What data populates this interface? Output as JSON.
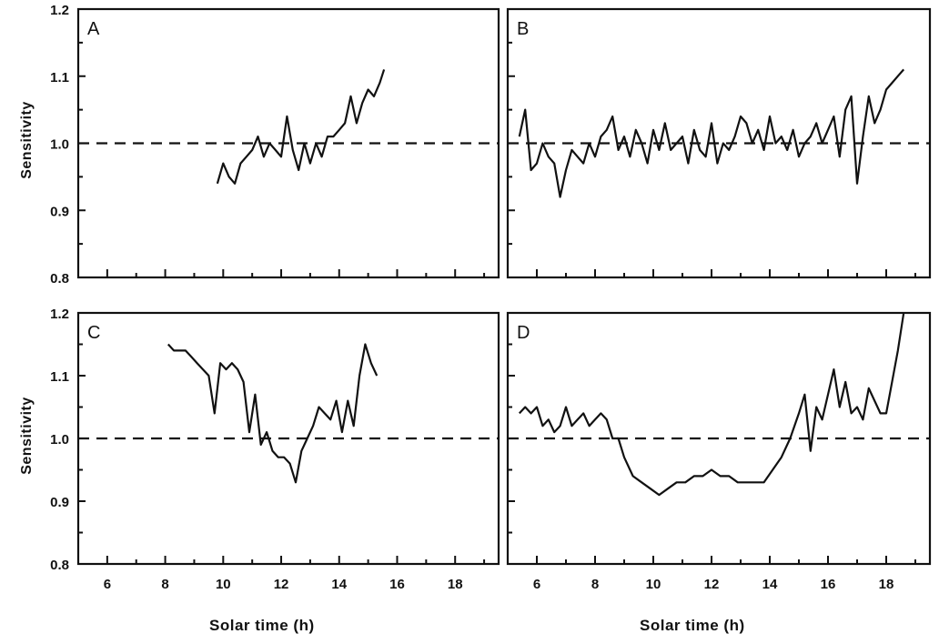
{
  "figure": {
    "ylabel": "Sensitivity",
    "xlabel": "Solar time (h)"
  },
  "chart_data": [
    {
      "type": "line",
      "panel": "A",
      "xlabel": "",
      "ylabel": "Sensitivity",
      "xlim": [
        5,
        19.5
      ],
      "ylim": [
        0.8,
        1.2
      ],
      "x_ticks": [],
      "y_ticks": [
        "0.8",
        "0.9",
        "1.0",
        "1.1",
        "1.2"
      ],
      "reference_line": 1.0,
      "series": [
        {
          "x": [
            9.8,
            10.0,
            10.2,
            10.4,
            10.6,
            10.8,
            11.0,
            11.2,
            11.4,
            11.6,
            11.8,
            12.0,
            12.2,
            12.4,
            12.6,
            12.8,
            13.0,
            13.2,
            13.4,
            13.6,
            13.8,
            14.0,
            14.2,
            14.4,
            14.6,
            14.8,
            15.0,
            15.2,
            15.4,
            15.55
          ],
          "y": [
            0.94,
            0.97,
            0.95,
            0.94,
            0.97,
            0.98,
            0.99,
            1.01,
            0.98,
            1.0,
            0.99,
            0.98,
            1.04,
            0.99,
            0.96,
            1.0,
            0.97,
            1.0,
            0.98,
            1.01,
            1.01,
            1.02,
            1.03,
            1.07,
            1.03,
            1.06,
            1.08,
            1.07,
            1.09,
            1.11
          ]
        }
      ]
    },
    {
      "type": "line",
      "panel": "B",
      "xlabel": "",
      "ylabel": "",
      "xlim": [
        5,
        19.5
      ],
      "ylim": [
        0.8,
        1.2
      ],
      "x_ticks": [],
      "y_ticks": [],
      "reference_line": 1.0,
      "series": [
        {
          "x": [
            5.4,
            5.6,
            5.8,
            6.0,
            6.2,
            6.4,
            6.6,
            6.8,
            7.0,
            7.2,
            7.4,
            7.6,
            7.8,
            8.0,
            8.2,
            8.4,
            8.6,
            8.8,
            9.0,
            9.2,
            9.4,
            9.6,
            9.8,
            10.0,
            10.2,
            10.4,
            10.6,
            10.8,
            11.0,
            11.2,
            11.4,
            11.6,
            11.8,
            12.0,
            12.2,
            12.4,
            12.6,
            12.8,
            13.0,
            13.2,
            13.4,
            13.6,
            13.8,
            14.0,
            14.2,
            14.4,
            14.6,
            14.8,
            15.0,
            15.2,
            15.4,
            15.6,
            15.8,
            16.0,
            16.2,
            16.4,
            16.6,
            16.8,
            17.0,
            17.2,
            17.4,
            17.6,
            17.8,
            18.0,
            18.2,
            18.4,
            18.6
          ],
          "y": [
            1.01,
            1.05,
            0.96,
            0.97,
            1.0,
            0.98,
            0.97,
            0.92,
            0.96,
            0.99,
            0.98,
            0.97,
            1.0,
            0.98,
            1.01,
            1.02,
            1.04,
            0.99,
            1.01,
            0.98,
            1.02,
            1.0,
            0.97,
            1.02,
            0.99,
            1.03,
            0.99,
            1.0,
            1.01,
            0.97,
            1.02,
            0.99,
            0.98,
            1.03,
            0.97,
            1.0,
            0.99,
            1.01,
            1.04,
            1.03,
            1.0,
            1.02,
            0.99,
            1.04,
            1.0,
            1.01,
            0.99,
            1.02,
            0.98,
            1.0,
            1.01,
            1.03,
            1.0,
            1.02,
            1.04,
            0.98,
            1.05,
            1.07,
            0.94,
            1.01,
            1.07,
            1.03,
            1.05,
            1.08,
            1.09,
            1.1,
            1.11
          ]
        }
      ]
    },
    {
      "type": "line",
      "panel": "C",
      "xlabel": "Solar time (h)",
      "ylabel": "Sensitivity",
      "xlim": [
        5,
        19.5
      ],
      "ylim": [
        0.8,
        1.2
      ],
      "x_ticks": [
        "6",
        "8",
        "10",
        "12",
        "14",
        "16",
        "18"
      ],
      "y_ticks": [
        "0.8",
        "0.9",
        "1.0",
        "1.1",
        "1.2"
      ],
      "reference_line": 1.0,
      "series": [
        {
          "x": [
            8.1,
            8.3,
            8.5,
            8.7,
            8.9,
            9.1,
            9.3,
            9.5,
            9.7,
            9.9,
            10.1,
            10.3,
            10.5,
            10.7,
            10.9,
            11.1,
            11.3,
            11.5,
            11.7,
            11.9,
            12.1,
            12.3,
            12.5,
            12.7,
            12.9,
            13.1,
            13.3,
            13.5,
            13.7,
            13.9,
            14.1,
            14.3,
            14.5,
            14.7,
            14.9,
            15.1,
            15.3
          ],
          "y": [
            1.15,
            1.14,
            1.14,
            1.14,
            1.13,
            1.12,
            1.11,
            1.1,
            1.04,
            1.12,
            1.11,
            1.12,
            1.11,
            1.09,
            1.01,
            1.07,
            0.99,
            1.01,
            0.98,
            0.97,
            0.97,
            0.96,
            0.93,
            0.98,
            1.0,
            1.02,
            1.05,
            1.04,
            1.03,
            1.06,
            1.01,
            1.06,
            1.02,
            1.1,
            1.15,
            1.12,
            1.1
          ]
        }
      ]
    },
    {
      "type": "line",
      "panel": "D",
      "xlabel": "Solar time (h)",
      "ylabel": "",
      "xlim": [
        5,
        19.5
      ],
      "ylim": [
        0.8,
        1.2
      ],
      "x_ticks": [
        "6",
        "8",
        "10",
        "12",
        "14",
        "16",
        "18"
      ],
      "y_ticks": [],
      "reference_line": 1.0,
      "series": [
        {
          "x": [
            5.4,
            5.6,
            5.8,
            6.0,
            6.2,
            6.4,
            6.6,
            6.8,
            7.0,
            7.2,
            7.4,
            7.6,
            7.8,
            8.0,
            8.2,
            8.4,
            8.6,
            8.8,
            9.0,
            9.3,
            9.6,
            9.9,
            10.2,
            10.5,
            10.8,
            11.1,
            11.4,
            11.7,
            12.0,
            12.3,
            12.6,
            12.9,
            13.2,
            13.5,
            13.8,
            14.1,
            14.4,
            14.7,
            15.0,
            15.2,
            15.4,
            15.6,
            15.8,
            16.0,
            16.2,
            16.4,
            16.6,
            16.8,
            17.0,
            17.2,
            17.4,
            17.6,
            17.8,
            18.0,
            18.2,
            18.4,
            18.6
          ],
          "y": [
            1.04,
            1.05,
            1.04,
            1.05,
            1.02,
            1.03,
            1.01,
            1.02,
            1.05,
            1.02,
            1.03,
            1.04,
            1.02,
            1.03,
            1.04,
            1.03,
            1.0,
            1.0,
            0.97,
            0.94,
            0.93,
            0.92,
            0.91,
            0.92,
            0.93,
            0.93,
            0.94,
            0.94,
            0.95,
            0.94,
            0.94,
            0.93,
            0.93,
            0.93,
            0.93,
            0.95,
            0.97,
            1.0,
            1.04,
            1.07,
            0.98,
            1.05,
            1.03,
            1.07,
            1.11,
            1.05,
            1.09,
            1.04,
            1.05,
            1.03,
            1.08,
            1.06,
            1.04,
            1.04,
            1.09,
            1.14,
            1.2
          ]
        }
      ]
    }
  ]
}
